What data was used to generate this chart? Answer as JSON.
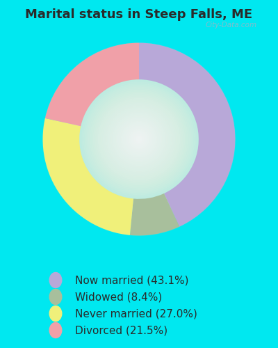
{
  "title": "Marital status in Steep Falls, ME",
  "slices": [
    43.1,
    8.4,
    27.0,
    21.5
  ],
  "labels": [
    "Now married (43.1%)",
    "Widowed (8.4%)",
    "Never married (27.0%)",
    "Divorced (21.5%)"
  ],
  "colors": [
    "#b8a8d8",
    "#a8bf9c",
    "#f0f07a",
    "#f0a0a8"
  ],
  "bg_color": "#00e8f0",
  "chart_bg": "#d4eedd",
  "watermark": "City-Data.com",
  "title_fontsize": 13,
  "legend_fontsize": 11,
  "donut_width": 0.38,
  "start_angle": 90
}
